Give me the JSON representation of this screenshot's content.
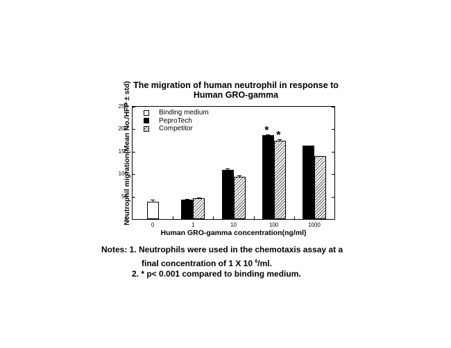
{
  "chart_data": {
    "type": "bar",
    "title": "The migration of human neutrophil in response to Human GRO-gamma",
    "title_lines": [
      "The migration of human neutrophil in response to",
      "Human GRO-gamma"
    ],
    "xlabel": "Human GRO-gamma concentration(ng/ml)",
    "ylabel": "Neutrophil migration(Mean No./HFP ± std)",
    "ylim": [
      0,
      250
    ],
    "yticks": [
      "0",
      "50",
      "100",
      "150",
      "200",
      "250"
    ],
    "categories": [
      "0",
      "1",
      "10",
      "100",
      "1000"
    ],
    "series": [
      {
        "name": "Binding medium",
        "fill": "white",
        "values": [
          39,
          null,
          null,
          null,
          null
        ],
        "errors": [
          4,
          null,
          null,
          null,
          null
        ]
      },
      {
        "name": "PeproTech",
        "fill": "black",
        "values": [
          null,
          44,
          110,
          186,
          163
        ],
        "errors": [
          null,
          1,
          2,
          2,
          1
        ]
      },
      {
        "name": "Competitor",
        "fill": "hatched",
        "values": [
          null,
          46,
          94,
          174,
          140
        ],
        "errors": [
          null,
          2,
          3,
          3,
          1
        ]
      }
    ],
    "annotations": [
      {
        "text": "*",
        "category": "100",
        "series": "PeproTech"
      },
      {
        "text": "*",
        "category": "100",
        "series": "Competitor"
      }
    ],
    "legend_position": "upper-left inside",
    "grid": false
  },
  "legend": {
    "items": [
      "Binding medium",
      "PeproTech",
      "Competitor"
    ]
  },
  "notes": {
    "line1": "Notes: 1. Neutrophils were used in the chemotaxis assay at a",
    "line2_prefix": "final concentration of 1 X 10",
    "line2_sup": "6",
    "line2_suffix": "/ml.",
    "line3": "2. * p< 0.001 compared to binding medium."
  }
}
